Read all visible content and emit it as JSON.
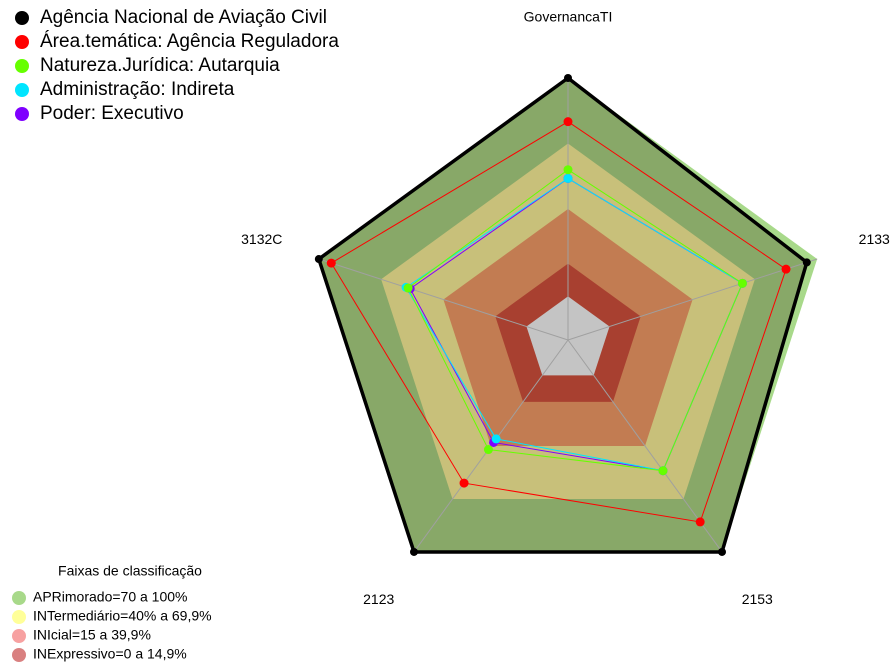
{
  "chart_data": {
    "type": "radar",
    "categories": [
      "GovernancaTI",
      "2133",
      "2153",
      "2123",
      "3132C"
    ],
    "rlim": [
      -20,
      100
    ],
    "series": [
      {
        "name": "Agência Nacional de Aviação Civil",
        "color": "#000000",
        "values": [
          100,
          95,
          100,
          100,
          100
        ]
      },
      {
        "name": "Área.temática: Agência Reguladora",
        "color": "#ff0000",
        "values": [
          80,
          85,
          83,
          61,
          94
        ]
      },
      {
        "name": "Natureza.Jurídica: Autarquia",
        "color": "#66ff00",
        "values": [
          58,
          64,
          54,
          42,
          57
        ]
      },
      {
        "name": "Administração: Indireta",
        "color": "#00e5ff",
        "values": [
          54,
          64,
          54,
          36,
          58
        ]
      },
      {
        "name": "Poder: Executivo",
        "color": "#7f00ff",
        "values": [
          54,
          64,
          54,
          38,
          56
        ]
      }
    ],
    "bands_title": "Faixas de classificação",
    "bands": [
      {
        "label": "APRimorado=70 a 100%",
        "from": 70,
        "to": 100,
        "color": "#a8d98a",
        "fill": "#88a868"
      },
      {
        "label": "INTermediário=40% a 69,9%",
        "from": 40,
        "to": 69.9,
        "color": "#ffff99",
        "fill": "#c8c07a"
      },
      {
        "label": "INIcial=15 a 39,9%",
        "from": 15,
        "to": 39.9,
        "color": "#f7a1a1",
        "fill": "#c27c52"
      },
      {
        "label": "INExpressivo=0 a 14,9%",
        "from": 0,
        "to": 14.9,
        "color": "#d98080",
        "fill": "#a84030"
      }
    ]
  }
}
